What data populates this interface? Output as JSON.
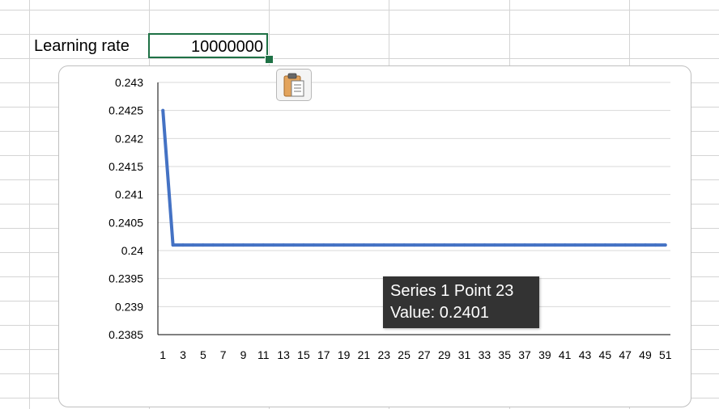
{
  "sheet": {
    "label_cell": "Learning rate",
    "active_cell_value": "10000000"
  },
  "chart": {
    "paste_icon": "clipboard-icon",
    "tooltip": {
      "line1": "Series 1 Point 23",
      "line2": "Value: 0.2401"
    }
  },
  "chart_data": {
    "type": "line",
    "title": "",
    "xlabel": "",
    "ylabel": "",
    "ylim": [
      0.2385,
      0.243
    ],
    "yticks": [
      "0.243",
      "0.2425",
      "0.242",
      "0.2415",
      "0.241",
      "0.2405",
      "0.24",
      "0.2395",
      "0.239",
      "0.2385"
    ],
    "xticks": [
      "1",
      "3",
      "5",
      "7",
      "9",
      "11",
      "13",
      "15",
      "17",
      "19",
      "21",
      "23",
      "25",
      "27",
      "29",
      "31",
      "33",
      "35",
      "37",
      "39",
      "41",
      "43",
      "45",
      "47",
      "49",
      "51"
    ],
    "gridlines": true,
    "legend": "none",
    "line_color": "#4472c4",
    "series": [
      {
        "x": [
          1,
          2,
          3,
          4,
          5,
          6,
          7,
          8,
          9,
          10,
          11,
          12,
          13,
          14,
          15,
          16,
          17,
          18,
          19,
          20,
          21,
          22,
          23,
          24,
          25,
          26,
          27,
          28,
          29,
          30,
          31,
          32,
          33,
          34,
          35,
          36,
          37,
          38,
          39,
          40,
          41,
          42,
          43,
          44,
          45,
          46,
          47,
          48,
          49,
          50,
          51
        ],
        "values": [
          0.2425,
          0.2401,
          0.2401,
          0.2401,
          0.2401,
          0.2401,
          0.2401,
          0.2401,
          0.2401,
          0.2401,
          0.2401,
          0.2401,
          0.2401,
          0.2401,
          0.2401,
          0.2401,
          0.2401,
          0.2401,
          0.2401,
          0.2401,
          0.2401,
          0.2401,
          0.2401,
          0.2401,
          0.2401,
          0.2401,
          0.2401,
          0.2401,
          0.2401,
          0.2401,
          0.2401,
          0.2401,
          0.2401,
          0.2401,
          0.2401,
          0.2401,
          0.2401,
          0.2401,
          0.2401,
          0.2401,
          0.2401,
          0.2401,
          0.2401,
          0.2401,
          0.2401,
          0.2401,
          0.2401,
          0.2401,
          0.2401,
          0.2401,
          0.2401
        ]
      }
    ]
  }
}
